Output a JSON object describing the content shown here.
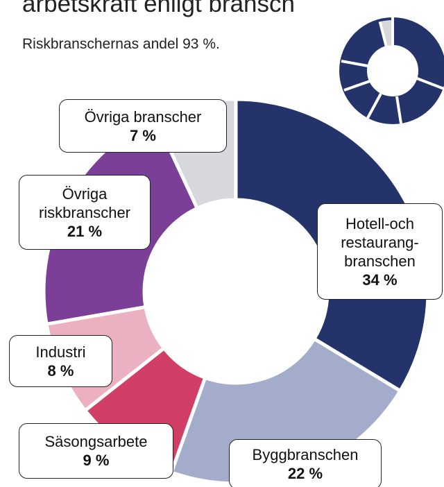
{
  "chart_data": {
    "type": "pie",
    "donut": true,
    "title": "arbetskraft enligt bransch",
    "subtitle": "Riskbranschernas andel 93 %.",
    "categories": [
      "Hotell-och restaurang-branschen",
      "Byggbranschen",
      "Säsongsarbete",
      "Industri",
      "Övriga riskbranscher",
      "Övriga branscher"
    ],
    "values": [
      34,
      22,
      9,
      8,
      21,
      7
    ],
    "value_labels": [
      "34 %",
      "22 %",
      "9 %",
      "8 %",
      "21 %",
      "7 %"
    ],
    "colors": [
      "#25336b",
      "#a3acca",
      "#d13e66",
      "#ecb1c1",
      "#7c3f98",
      "#d6d8dc"
    ]
  }
}
